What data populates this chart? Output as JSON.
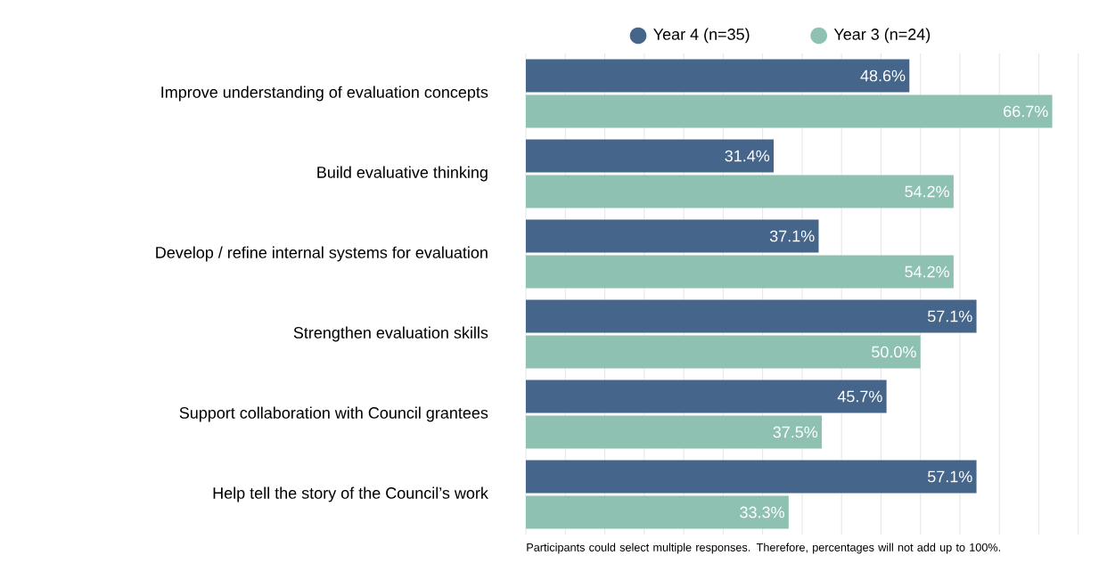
{
  "chart_data": {
    "type": "bar",
    "orientation": "horizontal",
    "categories": [
      "Improve understanding of evaluation concepts",
      "Build evaluative thinking",
      "Develop / refine internal systems for evaluation",
      "Strengthen evaluation skills",
      "Support collaboration with Council grantees",
      "Help tell the story of the Council’s work"
    ],
    "series": [
      {
        "name": "Year 4 (n=35)",
        "color": "#46658a",
        "values": [
          48.6,
          31.4,
          37.1,
          57.1,
          45.7,
          57.1
        ],
        "value_labels": [
          "48.6%",
          "31.4%",
          "37.1%",
          "57.1%",
          "45.7%",
          "57.1%"
        ]
      },
      {
        "name": "Year 3 (n=24)",
        "color": "#8fc1b3",
        "values": [
          66.7,
          54.2,
          54.2,
          50.0,
          37.5,
          33.3
        ],
        "value_labels": [
          "66.7%",
          "54.2%",
          "54.2%",
          "50.0%",
          "37.5%",
          "33.3%"
        ]
      }
    ],
    "tick_labels": "y",
    "grid": "x",
    "legend": "top",
    "annotations": [
      "Participants could select multiple responses. Therefore, percentages will not add up to 100%."
    ]
  }
}
